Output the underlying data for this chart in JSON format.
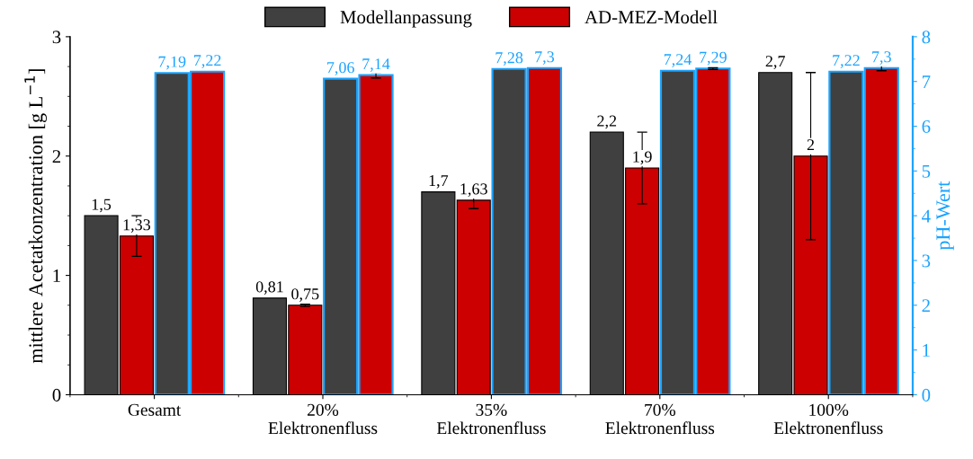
{
  "chart_data": {
    "type": "bar",
    "ylabel": "mittlere Acetatkonzentration [g L$^{−1}$]",
    "y2label": "pH-Wert",
    "categories": [
      "Gesamt",
      "20%\nElektronenfluss",
      "35%\nElektronenfluss",
      "70%\nElektronenfluss",
      "100%\nElektronenfluss"
    ],
    "series": [
      {
        "name": "Modellanpassung",
        "color": "#404040",
        "values": [
          1.5,
          0.81,
          1.7,
          2.2,
          2.7
        ],
        "value_labels": [
          "1,5",
          "0,81",
          "1,7",
          "2,2",
          "2,7"
        ]
      },
      {
        "name": "AD-MEZ-Modell",
        "color": "#cc0000",
        "values": [
          1.33,
          0.75,
          1.63,
          1.9,
          2
        ],
        "errors": [
          0.17,
          0.01,
          0.07,
          0.3,
          0.7
        ],
        "value_labels": [
          "1,33",
          "0,75",
          "1,63",
          "1,9",
          "2"
        ]
      },
      {
        "color": "#404040",
        "axis": "y2",
        "values": [
          7.19,
          7.06,
          7.28,
          7.24,
          7.22
        ],
        "value_labels": [
          "7,19",
          "7,06",
          "7,28",
          "7,24",
          "7,22"
        ]
      },
      {
        "color": "#cc0000",
        "axis": "y2",
        "values": [
          7.22,
          7.14,
          7.3,
          7.29,
          7.3
        ],
        "errors": [
          null,
          0.06,
          null,
          0.02,
          0.06
        ],
        "value_labels": [
          "7,22",
          "7,14",
          "7,3",
          "7,29",
          "7,3"
        ]
      }
    ],
    "ylim": [
      0,
      3
    ],
    "yticks": [
      0,
      1,
      2,
      3
    ],
    "y2lim": [
      0,
      8
    ],
    "y2ticks": [
      0,
      1,
      2,
      3,
      4,
      5,
      6,
      7,
      8
    ],
    "legend": "top",
    "grid": false
  }
}
